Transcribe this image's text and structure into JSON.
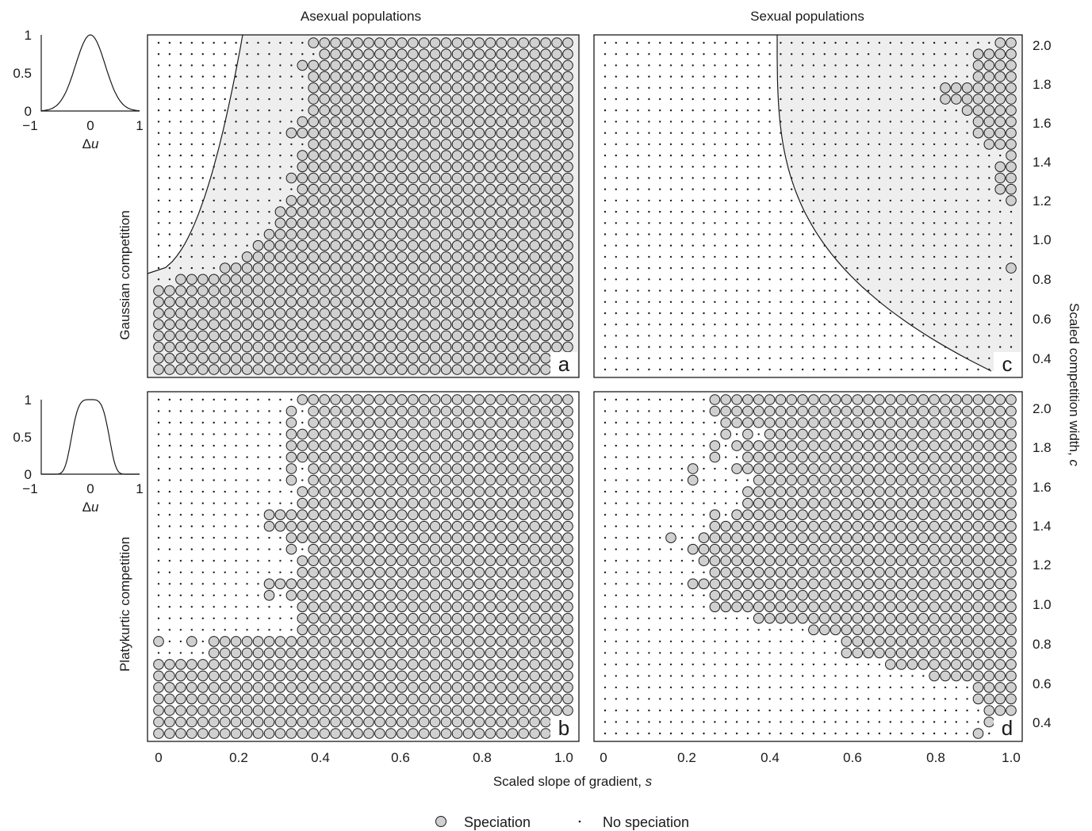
{
  "figure": {
    "column_titles": [
      "Asexual populations",
      "Sexual populations"
    ],
    "row_titles": [
      "Gaussian competition",
      "Platykurtic competition"
    ],
    "x_axis_label": "Scaled slope of gradient, ",
    "x_axis_symbol": "s",
    "y_axis_label": "Scaled competition width, ",
    "y_axis_symbol": "c",
    "x_ticks": [
      "0",
      "0.2",
      "0.4",
      "0.6",
      "0.8",
      "1.0"
    ],
    "y_ticks": [
      "0.4",
      "0.6",
      "0.8",
      "1.0",
      "1.2",
      "1.4",
      "1.6",
      "1.8",
      "2.0"
    ],
    "legend": [
      {
        "label": "Speciation",
        "marker": "circle"
      },
      {
        "label": "No speciation",
        "marker": "dot"
      }
    ],
    "colors": {
      "speciation_fill": "#d0d0d0",
      "region_fill": "#eeeeee",
      "ink": "#1a1a1a"
    }
  },
  "insets": [
    {
      "row": "gaussian",
      "y_ticks": [
        "1",
        "0.5",
        "0"
      ],
      "x_ticks": [
        "−1",
        "0",
        "1"
      ],
      "x_label": "Δ",
      "x_label_symbol": "u",
      "kernel": "gaussian"
    },
    {
      "row": "platykurtic",
      "y_ticks": [
        "1",
        "0.5",
        "0"
      ],
      "x_ticks": [
        "−1",
        "0",
        "1"
      ],
      "x_label": "Δ",
      "x_label_symbol": "u",
      "kernel": "platykurtic"
    }
  ],
  "chart_data": [
    {
      "type": "scatter",
      "panel": "a",
      "title": "Asexual populations",
      "ylabel": "Gaussian competition",
      "x_range": [
        0,
        1.0
      ],
      "y_range": [
        0.34,
        2.04
      ],
      "grid": "s = 0..1 step 1/30, c = 0.34..2.04 step 0.0567",
      "speciation_min_column_by_row": [
        0,
        0,
        0,
        0,
        0,
        0,
        0,
        0,
        0,
        1,
        2,
        3,
        4,
        5,
        5,
        5,
        5,
        6,
        6,
        6,
        5,
        5,
        6,
        6,
        7,
        6,
        6,
        6,
        6,
        6,
        6,
        7,
        8,
        8,
        9,
        9,
        9,
        10,
        10,
        10,
        10,
        11,
        11,
        11,
        11,
        11,
        12,
        12,
        13,
        13,
        13,
        14,
        14,
        14,
        14,
        15,
        15,
        15,
        15,
        16
      ],
      "speciation_min_column_by_row_note": "index = row from bottom (c low to high); speciation for column index >= value",
      "boundary_curve": "analytic threshold (shaded region)",
      "series": [
        {
          "name": "Speciation"
        },
        {
          "name": "No speciation"
        }
      ]
    },
    {
      "type": "scatter",
      "panel": "b",
      "ylabel": "Platykurtic competition",
      "x_range": [
        0,
        1.0
      ],
      "y_range": [
        0.34,
        2.04
      ],
      "rows_from_top": [
        "........................................................................................................................................................................................................................................",
        "......................................................................................................................................................................................................................................."
      ]
    },
    {
      "type": "scatter",
      "panel": "c",
      "title": "Sexual populations",
      "x_range": [
        0,
        1.0
      ],
      "y_range": [
        0.34,
        2.04
      ],
      "boundary_curve": "analytic threshold (shaded region)"
    },
    {
      "type": "scatter",
      "panel": "d",
      "x_range": [
        0,
        1.0
      ],
      "y_range": [
        0.34,
        2.04
      ]
    }
  ],
  "panel_grids": {
    "a": [
      "..............OOOOOOOOOOOOOOOOOOOOOOOO",
      "...............OOOOOOOOOOOOOOOOOOOOOOO",
      ".............OOOOOOOOOOOOOOOOOOOOOOOOO",
      "..............OOOOOOOOOOOOOOOOOOOOOOOO",
      "..............OOOOOOOOOOOOOOOOOOOOOOOO",
      "..............OOOOOOOOOOOOOOOOOOOOOOOO",
      "..............OOOOOOOOOOOOOOOOOOOOOOOO",
      ".............OOOOOOOOOOOOOOOOOOOOOOOOO",
      "............OOOOOOOOOOOOOOOOOOOOOOOOOO",
      "..............OOOOOOOOOOOOOOOOOOOOOOOO",
      ".............OOOOOOOOOOOOOOOOOOOOOOOOO",
      ".............OOOOOOOOOOOOOOOOOOOOOOOOO",
      "............OOOOOOOOOOOOOOOOOOOOOOOOOO",
      ".............OOOOOOOOOOOOOOOOOOOOOOOOO",
      "............OOOOOOOOOOOOOOOOOOOOOOOOOO",
      "...........OOOOOOOOOOOOOOOOOOOOOOOOOOO",
      "...........OOOOOOOOOOOOOOOOOOOOOOOOOOO",
      "..........OOOOOOOOOOOOOOOOOOOOOOOOOOOO",
      ".........OOOOOOOOOOOOOOOOOOOOOOOOOOOOO",
      "........OOOOOOOOOOOOOOOOOOOOOOOOOOOOOO",
      "......OOOOOOOOOOOOOOOOOOOOOOOOOOOOOOOO",
      "..OOOOOOOOOOOOOOOOOOOOOOOOOOOOOOOOOOOO",
      "OOOOOOOOOOOOOOOOOOOOOOOOOOOOOOOOOOOOOO",
      "OOOOOOOOOOOOOOOOOOOOOOOOOOOOOOOOOOOOOO",
      "OOOOOOOOOOOOOOOOOOOOOOOOOOOOOOOOOOOOOO",
      "OOOOOOOOOOOOOOOOOOOOOOOOOOOOOOOOOOOOOO",
      "OOOOOOOOOOOOOOOOOOOOOOOOOOOOOOOOOOOOOO",
      "OOOOOOOOOOOOOOOOOOOOOOOOOOOOOOOOOOOOOO",
      "OOOOOOOOOOOOOOOOOOOOOOOOOOOOOOOOOOOOOO",
      "OOOOOOOOOOOOOOOOOOOOOOOOOOOOOOOOOOOOOO"
    ],
    "c": [
      "....................................OO",
      "..................................OOOO",
      "..................................OOOO",
      "..................................OOOO",
      "...............................OOOOOOO",
      "...............................OOOOOOO",
      ".................................OOOOO",
      "..................................OOOO",
      "..................................OOOO",
      "...................................OOO",
      ".....................................O",
      "....................................OO",
      "....................................OO",
      "....................................OO",
      ".....................................O",
      "......................................",
      "......................................",
      "......................................",
      "......................................",
      "......................................",
      ".....................................O",
      "......................................",
      "......................................",
      "......................................",
      "......................................",
      "......................................",
      "......................................",
      "......................................",
      "......................................",
      "......................................"
    ],
    "b": [
      ".............OOOOOOOOOOOOOOOOOOOOOOOOO",
      "............O.OOOOOOOOOOOOOOOOOOOOOOOO",
      "............O.OOOOOOOOOOOOOOOOOOOOOOOO",
      "............OOOOOOOOOOOOOOOOOOOOOOOOOO",
      "............OOOOOOOOOOOOOOOOOOOOOOOOOO",
      "............OOOOOOOOOOOOOOOOOOOOOOOOOO",
      "............O.OOOOOOOOOOOOOOOOOOOOOOOO",
      "............O.OOOOOOOOOOOOOOOOOOOOOOOO",
      ".............OOOOOOOOOOOOOOOOOOOOOOOOO",
      ".............OOOOOOOOOOOOOOOOOOOOOOOOO",
      "..........OOOOOOOOOOOOOOOOOOOOOOOOOOOO",
      "..........OOOOOOOOOOOOOOOOOOOOOOOOOOOO",
      "............OOOOOOOOOOOOOOOOOOOOOOOOOO",
      "............O.OOOOOOOOOOOOOOOOOOOOOOOO",
      ".............OOOOOOOOOOOOOOOOOOOOOOOOO",
      ".............OOOOOOOOOOOOOOOOOOOOOOOOO",
      "..........OOOOOOOOOOOOOOOOOOOOOOOOOOOO",
      "..........O.OOOOOOOOOOOOOOOOOOOOOOOOOO",
      ".............OOOOOOOOOOOOOOOOOOOOOOOOO",
      ".............OOOOOOOOOOOOOOOOOOOOOOOOO",
      ".............OOOOOOOOOOOOOOOOOOOOOOOOO",
      "O..O.OOOOOOOOOOOOOOOOOOOOOOOOOOOOOOOOO",
      ".....OOOOOOOOOOOOOOOOOOOOOOOOOOOOOOOOO",
      "OOOOOOOOOOOOOOOOOOOOOOOOOOOOOOOOOOOOOO",
      "OOOOOOOOOOOOOOOOOOOOOOOOOOOOOOOOOOOOOO",
      "OOOOOOOOOOOOOOOOOOOOOOOOOOOOOOOOOOOOOO",
      "OOOOOOOOOOOOOOOOOOOOOOOOOOOOOOOOOOOOOO",
      "OOOOOOOOOOOOOOOOOOOOOOOOOOOOOOOOOOOOOO",
      "OOOOOOOOOOOOOOOOOOOOOOOOOOOOOOOOOOOOOO",
      "OOOOOOOOOOOOOOOOOOOOOOOOOOOOOOOOOOOOOO"
    ],
    "d": [
      "..........OOOOOOOOOOOOOOOOOOOOOOOOOOOO",
      "..........OOOOOOOOOOOOOOOOOOOOOOOOOOOO",
      "...........OOOOOOOOOOOOOOOOOOOOOOOOOOO",
      "...........O.O.OOOOOOOOOOOOOOOOOOOOOOO",
      "..........O.OOOOOOOOOOOOOOOOOOOOOOOOOO",
      "..........O..OOOOOOOOOOOOOOOOOOOOOOOOO",
      "........O...OOOOOOOOOOOOOOOOOOOOOOOOOO",
      "........O.....OOOOOOOOOOOOOOOOOOOOOOOO",
      ".............OOOOOOOOOOOOOOOOOOOOOOOOO",
      ".............OOOOOOOOOOOOOOOOOOOOOOOOO",
      "..........O.OOOOOOOOOOOOOOOOOOOOOOOOOO",
      "..........OOOOOOOOOOOOOOOOOOOOOOOOOOOO",
      "......O..OOOOOOOOOOOOOOOOOOOOOOOOOOOOO",
      "........OOOOOOOOOOOOOOOOOOOOOOOOOOOOOO",
      ".........OOOOOOOOOOOOOOOOOOOOOOOOOOOOO",
      "..........OOOOOOOOOOOOOOOOOOOOOOOOOOOO",
      "........OOOOOOOOOOOOOOOOOOOOOOOOOOOOOO",
      "..........OOOOOOOOOOOOOOOOOOOOOOOOOOOO",
      "..........OOOOOOOOOOOOOOOOOOOOOOOOOOOO",
      "..............OOOOOOOOOOOOOOOOOOOOOOOO",
      "...................OOOOOOOOOOOOOOOOOOO",
      "......................OOOOOOOOOOOOOOOO",
      "......................OOOOOOOOOOOOOOOO",
      "..........................OOOOOOOOOOOO",
      "..............................OOOOOOOO",
      "..................................OOOO",
      "..................................OOOO",
      "...................................OOO",
      "...................................OOO",
      "..................................O..."
    ]
  }
}
